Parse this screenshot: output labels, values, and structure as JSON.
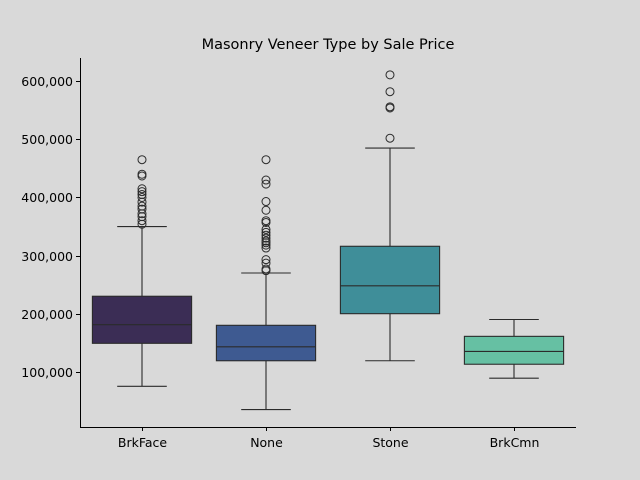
{
  "chart_data": {
    "type": "boxplot",
    "title": "Masonry Veneer Type by Sale Price",
    "xlabel": "",
    "ylabel": "",
    "ylim": [
      5000,
      640000
    ],
    "y_ticks": [
      100000,
      200000,
      300000,
      400000,
      500000,
      600000
    ],
    "y_tick_labels": [
      "100,000",
      "200,000",
      "300,000",
      "400,000",
      "500,000",
      "600,000"
    ],
    "grid": false,
    "categories": [
      "BrkFace",
      "None",
      "Stone",
      "BrkCmn"
    ],
    "boxes": [
      {
        "category": "BrkFace",
        "color": "#3b2d55",
        "whisker_low": 75000,
        "q1": 149000,
        "median": 181000,
        "q3": 230000,
        "whisker_high": 350000,
        "outliers": [
          465000,
          440000,
          437000,
          415000,
          410000,
          405000,
          400000,
          392000,
          385000,
          380000,
          372000,
          367000,
          360000,
          354000
        ]
      },
      {
        "category": "None",
        "color": "#3e5a91",
        "whisker_low": 35000,
        "q1": 119000,
        "median": 143000,
        "q3": 180000,
        "whisker_high": 270000,
        "outliers": [
          465000,
          430000,
          423000,
          393000,
          378000,
          360000,
          357000,
          345000,
          340000,
          335000,
          330000,
          325000,
          322000,
          318000,
          313000,
          293000,
          287000,
          277000,
          274000
        ]
      },
      {
        "category": "Stone",
        "color": "#3f8e99",
        "whisker_low": 119000,
        "q1": 200000,
        "median": 248000,
        "q3": 316000,
        "whisker_high": 485000,
        "outliers": [
          611000,
          582000,
          556000,
          554000,
          502000
        ]
      },
      {
        "category": "BrkCmn",
        "color": "#66c0a3",
        "whisker_low": 89000,
        "q1": 113000,
        "median": 135000,
        "q3": 161000,
        "whisker_high": 190000,
        "outliers": []
      }
    ]
  }
}
